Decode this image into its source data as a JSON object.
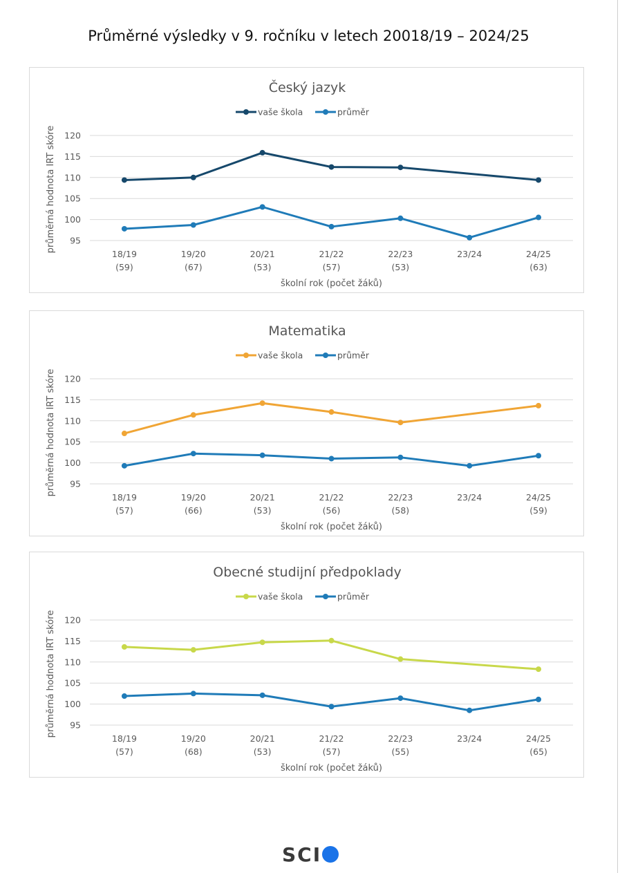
{
  "page_title": "Průměrné výsledky v 9. ročníku v letech 20018/19 – 2024/25",
  "logo": {
    "text": "SCI",
    "dot_color": "#1a73e8"
  },
  "colors": {
    "average": "#1f7bb8",
    "school_cj": "#16486b",
    "school_m": "#f0a535",
    "school_osp": "#c8d84a",
    "grid": "#d9d9d9"
  },
  "chart_data": [
    {
      "type": "line",
      "title": "Český jazyk",
      "ylabel": "průměrná hodnota IRT skóre",
      "xlabel": "školní rok (počet žáků)",
      "ylim": [
        95,
        120
      ],
      "yticks": [
        "120",
        "115",
        "110",
        "105",
        "100",
        "95"
      ],
      "legend_position": "top-center",
      "categories": [
        "18/19",
        "19/20",
        "20/21",
        "21/22",
        "22/23",
        "23/24",
        "24/25"
      ],
      "counts": [
        "(59)",
        "(67)",
        "(53)",
        "(57)",
        "(53)",
        "",
        "(63)"
      ],
      "series": [
        {
          "name": "vaše škola",
          "color": "#16486b",
          "values": [
            109.4,
            110.0,
            115.9,
            112.5,
            112.4,
            null,
            109.4
          ]
        },
        {
          "name": "průměr",
          "color": "#1f7bb8",
          "values": [
            97.8,
            98.7,
            103.0,
            98.3,
            100.3,
            95.7,
            100.5
          ]
        }
      ]
    },
    {
      "type": "line",
      "title": "Matematika",
      "ylabel": "průměrná hodnota IRT skóre",
      "xlabel": "školní rok (počet žáků)",
      "ylim": [
        95,
        120
      ],
      "yticks": [
        "120",
        "115",
        "110",
        "105",
        "100",
        "95"
      ],
      "legend_position": "top-center",
      "categories": [
        "18/19",
        "19/20",
        "20/21",
        "21/22",
        "22/23",
        "23/24",
        "24/25"
      ],
      "counts": [
        "(57)",
        "(66)",
        "(53)",
        "(56)",
        "(58)",
        "",
        "(59)"
      ],
      "series": [
        {
          "name": "vaše škola",
          "color": "#f0a535",
          "values": [
            107.0,
            111.4,
            114.2,
            112.1,
            109.6,
            null,
            113.6
          ]
        },
        {
          "name": "průměr",
          "color": "#1f7bb8",
          "values": [
            99.3,
            102.2,
            101.8,
            101.0,
            101.3,
            99.3,
            101.7
          ]
        }
      ]
    },
    {
      "type": "line",
      "title": "Obecné studijní předpoklady",
      "ylabel": "průměrná hodnota IRT skóre",
      "xlabel": "školní rok (počet žáků)",
      "ylim": [
        95,
        120
      ],
      "yticks": [
        "120",
        "115",
        "110",
        "105",
        "100",
        "95"
      ],
      "legend_position": "top-center",
      "categories": [
        "18/19",
        "19/20",
        "20/21",
        "21/22",
        "22/23",
        "23/24",
        "24/25"
      ],
      "counts": [
        "(57)",
        "(68)",
        "(53)",
        "(57)",
        "(55)",
        "",
        "(65)"
      ],
      "series": [
        {
          "name": "vaše škola",
          "color": "#c8d84a",
          "values": [
            113.6,
            112.9,
            114.7,
            115.1,
            110.7,
            null,
            108.3
          ]
        },
        {
          "name": "průměr",
          "color": "#1f7bb8",
          "values": [
            101.9,
            102.5,
            102.1,
            99.4,
            101.4,
            98.5,
            101.1
          ]
        }
      ]
    }
  ]
}
